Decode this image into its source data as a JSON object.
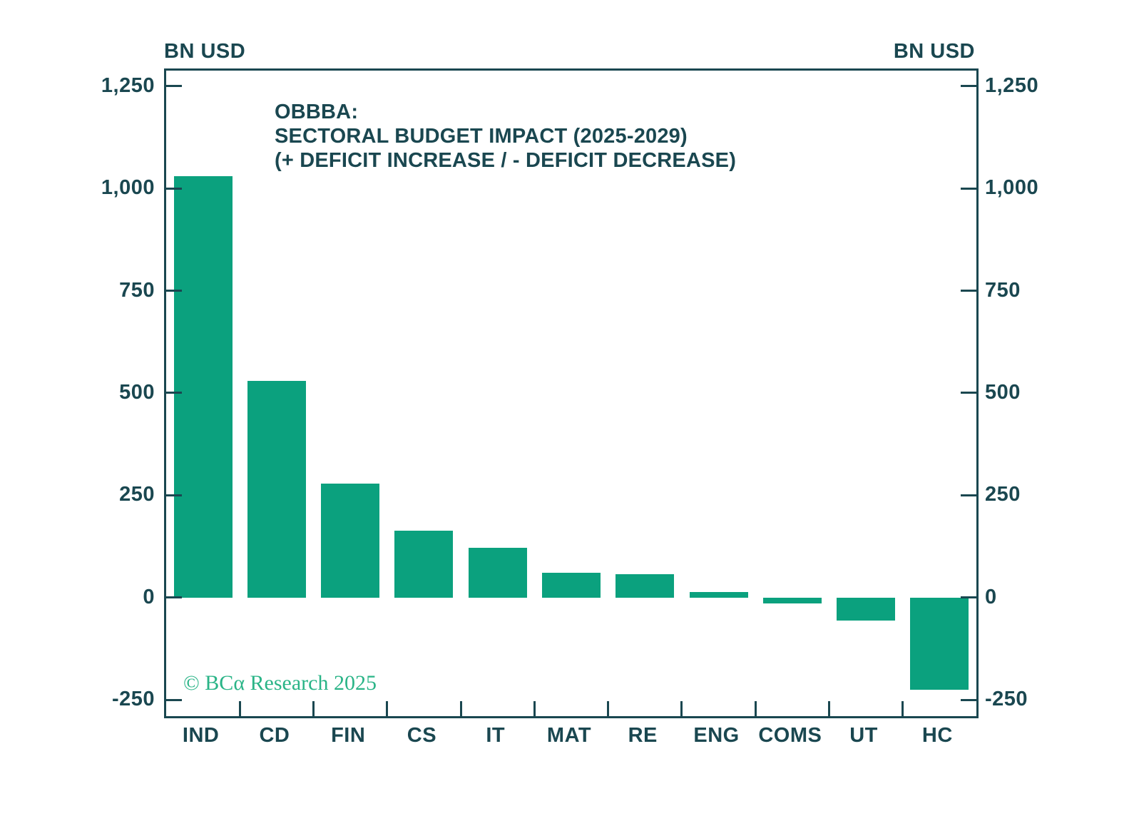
{
  "axis_units": {
    "left": "BN USD",
    "right": "BN USD"
  },
  "title": {
    "line1": "OBBBA:",
    "line2": "SECTORAL BUDGET IMPACT (2025-2029)",
    "line3": "(+ DEFICIT INCREASE / - DEFICIT DECREASE)"
  },
  "watermark": "© BCα Research 2025",
  "colors": {
    "background": "#ffffff",
    "bar": "#0ba17e",
    "axis_and_text": "#1a4750",
    "watermark": "#2ab487"
  },
  "chart_data": {
    "type": "bar",
    "title": "OBBBA: SECTORAL BUDGET IMPACT (2025-2029) (+ DEFICIT INCREASE / - DEFICIT DECREASE)",
    "categories": [
      "IND",
      "CD",
      "FIN",
      "CS",
      "IT",
      "MAT",
      "RE",
      "ENG",
      "COMS",
      "UT",
      "HC"
    ],
    "values": [
      1030,
      530,
      278,
      164,
      122,
      61,
      57,
      14,
      -14,
      -56,
      -226
    ],
    "xlabel": "",
    "ylabel": "BN USD",
    "unit": "BN USD",
    "ylim": [
      -290,
      1288
    ],
    "yticks": [
      -250,
      0,
      250,
      500,
      750,
      1000,
      1250
    ],
    "grid": false,
    "legend_position": "none",
    "bar_color": "#0ba17e"
  }
}
